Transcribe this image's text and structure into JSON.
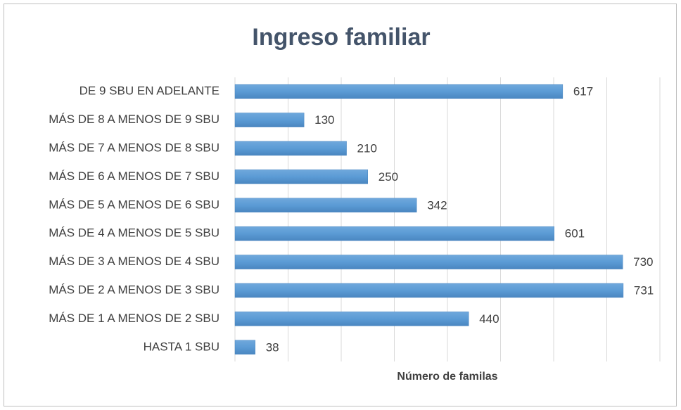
{
  "chart_data": {
    "type": "bar",
    "orientation": "horizontal",
    "title": "Ingreso familiar",
    "x_label": "Número de familas",
    "categories": [
      "DE 9 SBU EN ADELANTE",
      "MÁS DE 8 A MENOS DE 9 SBU",
      "MÁS DE 7 A MENOS DE 8 SBU",
      "MÁS DE 6 A MENOS DE 7 SBU",
      "MÁS DE 5 A MENOS DE 6 SBU",
      "MÁS DE 4 A MENOS DE 5 SBU",
      "MÁS DE 3 A MENOS DE 4 SBU",
      "MÁS DE 2 A MENOS DE 3 SBU",
      "MÁS DE 1 A MENOS DE 2 SBU",
      "HASTA 1 SBU"
    ],
    "values": [
      617,
      130,
      210,
      250,
      342,
      601,
      730,
      731,
      440,
      38
    ],
    "color": "#5b9bd5",
    "xlim": [
      0,
      800
    ],
    "xticks": [
      0,
      100,
      200,
      300,
      400,
      500,
      600,
      700,
      800
    ],
    "grid": true
  }
}
